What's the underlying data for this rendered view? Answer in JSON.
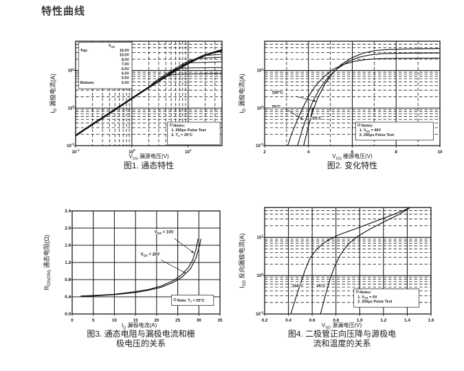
{
  "page_title": "特性曲线",
  "colors": {
    "ink": "#141414",
    "background": "#ffffff",
    "title": "#3a3a3a"
  },
  "chart_data": [
    {
      "id": "fig1",
      "type": "line",
      "caption": [
        "图1. 通态特性"
      ],
      "xlabel": "V_DS_ 漏源电压(V)",
      "ylabel": "I_D_ 漏极电流(A)",
      "x_axis": {
        "scale": "log",
        "min": 0.1,
        "max": 40,
        "ticks": [
          0.1,
          1,
          10
        ]
      },
      "y_axis": {
        "scale": "log",
        "min": 0.1,
        "max": 60,
        "ticks": [
          0.1,
          1,
          10
        ]
      },
      "legend": {
        "title": "V_GS_",
        "box": [
          0.02,
          0.01,
          0.385,
          0.455
        ],
        "rows": [
          {
            "prefix": "Top:",
            "value": "15.0V"
          },
          {
            "prefix": "",
            "value": "10.0V"
          },
          {
            "prefix": "",
            "value": "8.0V"
          },
          {
            "prefix": "",
            "value": "7.0V"
          },
          {
            "prefix": "",
            "value": "6.5V"
          },
          {
            "prefix": "",
            "value": "6.0V"
          },
          {
            "prefix": "",
            "value": "5.5V"
          },
          {
            "prefix": "Bottom:",
            "value": "5.0V"
          }
        ]
      },
      "notes": [
        "Notes:",
        "1. 250μs Pulse Test",
        "2. T_C_ = 25°C"
      ],
      "notes_box": [
        4.3,
        0.42,
        37,
        0.105
      ],
      "series": [
        {
          "name": "VGS 8.0V-15.0V overlap",
          "width": 2.6,
          "points": [
            [
              0.1,
              0.185
            ],
            [
              0.14,
              0.26
            ],
            [
              0.2,
              0.37
            ],
            [
              0.3,
              0.55
            ],
            [
              0.45,
              0.82
            ],
            [
              0.7,
              1.27
            ],
            [
              1,
              1.8
            ],
            [
              1.5,
              2.7
            ],
            [
              2.2,
              3.9
            ],
            [
              3.2,
              5.6
            ],
            [
              4.7,
              8
            ],
            [
              7,
              11.5
            ],
            [
              10,
              15.5
            ],
            [
              14,
              20
            ],
            [
              20,
              25.5
            ],
            [
              28,
              30
            ],
            [
              40,
              35
            ]
          ]
        },
        {
          "name": "VGS 5.0V",
          "width": 1,
          "points": [
            [
              2.2,
              4.2
            ],
            [
              3,
              6
            ],
            [
              4,
              7.2
            ],
            [
              6,
              7.9
            ],
            [
              10,
              8.1
            ],
            [
              40,
              8.3
            ]
          ]
        },
        {
          "name": "VGS 5.5V",
          "width": 1,
          "points": [
            [
              3,
              5.8
            ],
            [
              4,
              8
            ],
            [
              5.5,
              10.4
            ],
            [
              8,
              11.6
            ],
            [
              40,
              12
            ]
          ]
        },
        {
          "name": "VGS 6.0V",
          "width": 1,
          "points": [
            [
              4,
              7.2
            ],
            [
              5.5,
              10.6
            ],
            [
              7.5,
              13.8
            ],
            [
              11,
              16
            ],
            [
              40,
              17
            ]
          ]
        },
        {
          "name": "VGS 6.5V",
          "width": 1,
          "points": [
            [
              5,
              8.8
            ],
            [
              7,
              13.2
            ],
            [
              10,
              17.8
            ],
            [
              15,
              21
            ],
            [
              40,
              22.5
            ]
          ]
        },
        {
          "name": "VGS 7.0V",
          "width": 1,
          "points": [
            [
              6,
              10.3
            ],
            [
              9,
              15.3
            ],
            [
              14,
              21
            ],
            [
              20,
              25
            ],
            [
              40,
              27
            ]
          ]
        },
        {
          "name": "VGS 8.0V",
          "width": 1,
          "points": [
            [
              8,
              13
            ],
            [
              12,
              19
            ],
            [
              18,
              25
            ],
            [
              28,
              30
            ],
            [
              40,
              31.5
            ]
          ]
        }
      ]
    },
    {
      "id": "fig2",
      "type": "line",
      "caption": [
        "图2. 变化特性"
      ],
      "xlabel": "V_GS_ 栅源电压(V)",
      "ylabel": "I_D_ 漏极电流(A)",
      "x_axis": {
        "scale": "linear",
        "min": 2,
        "max": 10,
        "ticks": [
          2,
          4,
          6,
          8,
          10
        ],
        "minor_step": 1
      },
      "y_axis": {
        "scale": "log",
        "min": 0.1,
        "max": 60,
        "ticks": [
          0.1,
          1,
          10
        ]
      },
      "notes": [
        "Notes:",
        "1. V_DS_ = 40V",
        "2. 250μs Pulse Test"
      ],
      "notes_box": [
        6.15,
        0.42,
        9.7,
        0.14
      ],
      "annotations": [
        {
          "text": "150°C",
          "x": 2.32,
          "y": 2.4,
          "arrow": [
            3.42,
            2.05,
            4.35,
            1.5
          ]
        },
        {
          "text": "25°C",
          "x": 2.32,
          "y": 1.0,
          "arrow": [
            3.05,
            0.88,
            3.75,
            0.5
          ]
        },
        {
          "text": "-55°C",
          "x": 4.12,
          "y": 0.5,
          "arrow": [
            4.1,
            0.6,
            4.2,
            1.02
          ]
        }
      ],
      "series": [
        {
          "name": "150°C",
          "points": [
            [
              3.05,
              0.1
            ],
            [
              3.25,
              0.22
            ],
            [
              3.5,
              0.5
            ],
            [
              3.75,
              1.05
            ],
            [
              4,
              2
            ],
            [
              4.3,
              3.8
            ],
            [
              4.7,
              6.8
            ],
            [
              5.1,
              10.5
            ],
            [
              5.6,
              14.5
            ],
            [
              6.1,
              17.5
            ],
            [
              6.6,
              19.5
            ],
            [
              7.2,
              20.5
            ],
            [
              8,
              21
            ],
            [
              10,
              21.3
            ]
          ]
        },
        {
          "name": "25°C",
          "points": [
            [
              3.5,
              0.1
            ],
            [
              3.7,
              0.25
            ],
            [
              3.95,
              0.65
            ],
            [
              4.2,
              1.5
            ],
            [
              4.5,
              3.2
            ],
            [
              4.9,
              6.5
            ],
            [
              5.3,
              11
            ],
            [
              5.8,
              17
            ],
            [
              6.3,
              22.5
            ],
            [
              6.8,
              26
            ],
            [
              7.4,
              28
            ],
            [
              8.2,
              28.8
            ],
            [
              10,
              29.2
            ]
          ]
        },
        {
          "name": "-55°C",
          "points": [
            [
              3.78,
              0.1
            ],
            [
              3.98,
              0.3
            ],
            [
              4.2,
              0.85
            ],
            [
              4.45,
              2
            ],
            [
              4.75,
              4.3
            ],
            [
              5.1,
              8.5
            ],
            [
              5.5,
              14.5
            ],
            [
              6,
              22
            ],
            [
              6.5,
              29
            ],
            [
              7,
              33.5
            ],
            [
              7.6,
              36
            ],
            [
              8.5,
              37.5
            ],
            [
              10,
              38.2
            ]
          ]
        }
      ]
    },
    {
      "id": "fig3",
      "type": "line",
      "caption": [
        "图3. 通态电阻与漏极电流和栅",
        "极电压的关系"
      ],
      "xlabel": "I_D_ 漏极电流(A)",
      "ylabel": "R_DS(ON)_ 通态电阻(Ω)",
      "x_axis": {
        "scale": "linear",
        "min": 0,
        "max": 35,
        "ticks": [
          0,
          5,
          10,
          15,
          20,
          25,
          30,
          35
        ]
      },
      "y_axis": {
        "scale": "linear",
        "min": 0,
        "max": 2.4,
        "ticks": [
          0,
          0.4,
          0.8,
          1.2,
          1.6,
          2,
          2.4
        ],
        "decimals": 1
      },
      "notes": [
        "Note: T_J_ = 25°C"
      ],
      "notes_box": [
        23.5,
        0.44,
        33.5,
        0.2
      ],
      "annotations": [
        {
          "text": "V_GS_ = 10V",
          "x": 19.5,
          "y": 1.88,
          "arrow": [
            24.2,
            1.76,
            28.8,
            1.42
          ]
        },
        {
          "text": "V_GS_ = 20V",
          "x": 16.2,
          "y": 1.36,
          "arrow": [
            21,
            1.26,
            26.9,
            0.95
          ]
        }
      ],
      "series": [
        {
          "name": "VGS = 10V",
          "points": [
            [
              2,
              0.42
            ],
            [
              5,
              0.43
            ],
            [
              10,
              0.46
            ],
            [
              15,
              0.52
            ],
            [
              18,
              0.57
            ],
            [
              21,
              0.65
            ],
            [
              24,
              0.78
            ],
            [
              26,
              0.92
            ],
            [
              27.5,
              1.08
            ],
            [
              28.5,
              1.25
            ],
            [
              29.3,
              1.5
            ],
            [
              29.8,
              1.75
            ]
          ]
        },
        {
          "name": "VGS = 20V",
          "points": [
            [
              2,
              0.41
            ],
            [
              5,
              0.42
            ],
            [
              10,
              0.45
            ],
            [
              15,
              0.5
            ],
            [
              18,
              0.55
            ],
            [
              21,
              0.62
            ],
            [
              24,
              0.74
            ],
            [
              26,
              0.86
            ],
            [
              28,
              1.05
            ],
            [
              29.3,
              1.3
            ],
            [
              30.2,
              1.6
            ],
            [
              30.5,
              1.75
            ]
          ]
        }
      ]
    },
    {
      "id": "fig4",
      "type": "line",
      "caption": [
        "图4. 二极管正向压降与源极电",
        "流和温度的关系"
      ],
      "xlabel": "V_SD_ 源漏电压(V)",
      "ylabel": "I_SD_ 反向漏极电流(A)",
      "x_axis": {
        "scale": "linear",
        "min": 0.2,
        "max": 1.6,
        "ticks": [
          0.2,
          0.4,
          0.6,
          0.8,
          1,
          1.2,
          1.4,
          1.6
        ],
        "decimals": 1
      },
      "y_axis": {
        "scale": "log",
        "min": 0.1,
        "max": 60,
        "ticks": [
          0.1,
          1,
          10
        ]
      },
      "notes": [
        "Notes:",
        "1. V_GS_ = 0V",
        "2. 250μs Pulse Test"
      ],
      "notes_box": [
        0.95,
        0.45,
        1.5,
        0.15
      ],
      "annotations": [
        {
          "text": "150°C",
          "x": 0.43,
          "y": 0.5
        },
        {
          "text": "25°C",
          "x": 0.635,
          "y": 0.5
        }
      ],
      "series": [
        {
          "name": "150°C",
          "points": [
            [
              0.42,
              0.1
            ],
            [
              0.46,
              0.25
            ],
            [
              0.5,
              0.6
            ],
            [
              0.54,
              1.4
            ],
            [
              0.58,
              2.8
            ],
            [
              0.64,
              5
            ],
            [
              0.72,
              8
            ],
            [
              0.82,
              11.5
            ],
            [
              0.95,
              16
            ],
            [
              1.1,
              24
            ],
            [
              1.25,
              36
            ],
            [
              1.42,
              58
            ]
          ]
        },
        {
          "name": "25°C",
          "points": [
            [
              0.67,
              0.1
            ],
            [
              0.71,
              0.3
            ],
            [
              0.75,
              0.8
            ],
            [
              0.79,
              1.8
            ],
            [
              0.84,
              3.6
            ],
            [
              0.9,
              6.5
            ],
            [
              0.98,
              10.5
            ],
            [
              1.08,
              16
            ],
            [
              1.2,
              25
            ],
            [
              1.32,
              38
            ],
            [
              1.42,
              58
            ]
          ]
        }
      ]
    }
  ]
}
